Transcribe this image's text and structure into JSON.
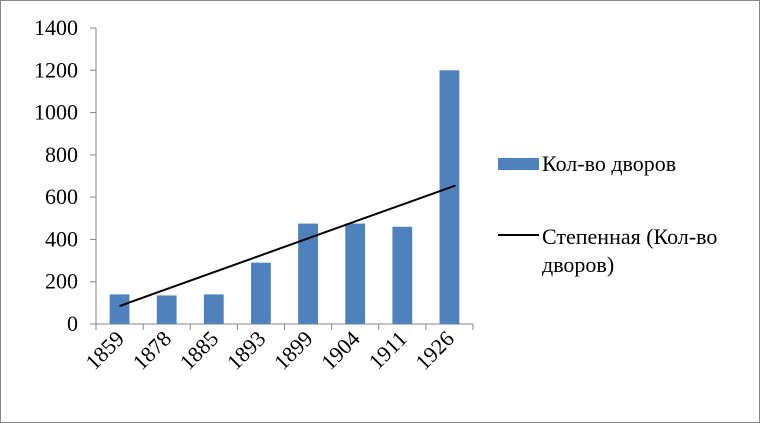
{
  "chart_data": {
    "type": "bar",
    "categories": [
      "1859",
      "1878",
      "1885",
      "1893",
      "1899",
      "1904",
      "1911",
      "1926"
    ],
    "series": [
      {
        "name": "Кол-во дворов",
        "values": [
          140,
          135,
          140,
          290,
          475,
          475,
          460,
          1200
        ],
        "color": "#4F81BD"
      }
    ],
    "trendline": {
      "name": [
        "Степенная (Кол-во",
        "дворов)"
      ],
      "type": "power",
      "start": 85,
      "end": 655,
      "color": "#000000"
    },
    "yticks": [
      "0",
      "200",
      "400",
      "600",
      "800",
      "1000",
      "1200",
      "1400"
    ],
    "ylim": [
      0,
      1400
    ],
    "grid": false,
    "legend_position": "right"
  }
}
